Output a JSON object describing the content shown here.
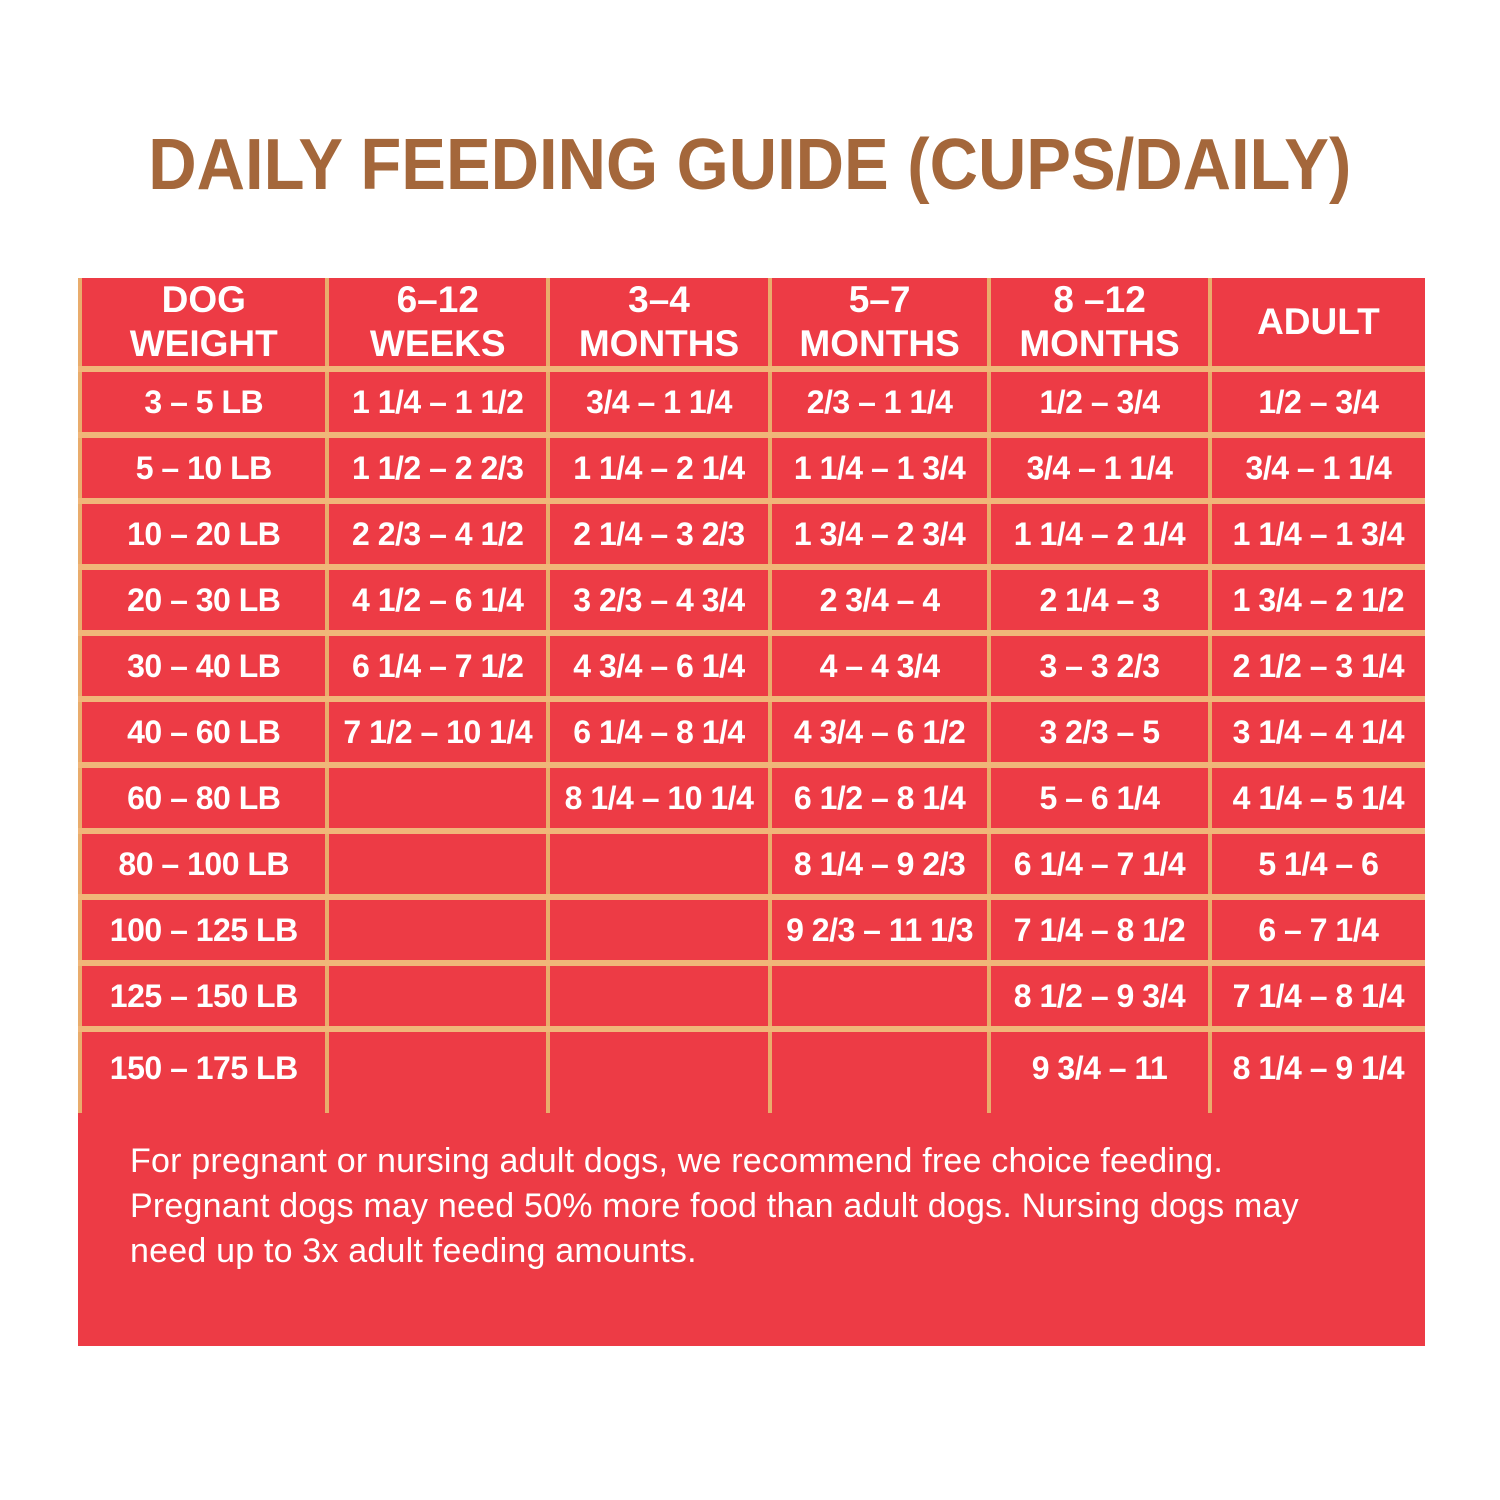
{
  "title": "DAILY FEEDING GUIDE (CUPS/DAILY)",
  "colors": {
    "panel_red": "#ED3B45",
    "grid_line_vertical": "#E9AC6C",
    "grid_line_horizontal": "#F0B679",
    "title_brown": "#A4673B",
    "text_white": "#FFFFFF"
  },
  "table": {
    "columns": [
      "DOG\nWEIGHT",
      "6–12\nWEEKS",
      "3–4\nMONTHS",
      "5–7\nMONTHS",
      "8 –12\nMONTHS",
      "ADULT"
    ],
    "rows": [
      {
        "weight": "3 – 5 LB",
        "cells": [
          "1 1/4 – 1 1/2",
          "3/4 – 1 1/4",
          "2/3 – 1 1/4",
          "1/2 – 3/4",
          "1/2 – 3/4"
        ]
      },
      {
        "weight": "5 – 10 LB",
        "cells": [
          "1 1/2 – 2 2/3",
          "1 1/4 – 2 1/4",
          "1 1/4 – 1 3/4",
          "3/4 – 1 1/4",
          "3/4 – 1 1/4"
        ]
      },
      {
        "weight": "10 – 20 LB",
        "cells": [
          "2 2/3 – 4 1/2",
          "2 1/4 – 3 2/3",
          "1 3/4 – 2 3/4",
          "1 1/4 – 2 1/4",
          "1 1/4 – 1 3/4"
        ]
      },
      {
        "weight": "20 – 30 LB",
        "cells": [
          "4 1/2 – 6 1/4",
          "3 2/3 – 4 3/4",
          "2 3/4 – 4",
          "2 1/4 – 3",
          "1 3/4 – 2 1/2"
        ]
      },
      {
        "weight": "30 – 40 LB",
        "cells": [
          "6 1/4 – 7 1/2",
          "4 3/4 – 6 1/4",
          "4 – 4 3/4",
          "3 – 3 2/3",
          "2 1/2 – 3 1/4"
        ]
      },
      {
        "weight": "40 – 60 LB",
        "cells": [
          "7 1/2 – 10 1/4",
          "6 1/4 – 8 1/4",
          "4 3/4 – 6 1/2",
          "3 2/3 – 5",
          "3 1/4 – 4 1/4"
        ]
      },
      {
        "weight": "60 – 80 LB",
        "cells": [
          "",
          "8 1/4 – 10 1/4",
          "6 1/2 – 8 1/4",
          "5 – 6 1/4",
          "4 1/4 – 5 1/4"
        ]
      },
      {
        "weight": "80 – 100 LB",
        "cells": [
          "",
          "",
          "8 1/4 – 9 2/3",
          "6 1/4 – 7 1/4",
          "5 1/4 – 6"
        ]
      },
      {
        "weight": "100 – 125 LB",
        "cells": [
          "",
          "",
          "9 2/3 – 11 1/3",
          "7 1/4 – 8 1/2",
          "6 – 7 1/4"
        ]
      },
      {
        "weight": "125 – 150 LB",
        "cells": [
          "",
          "",
          "",
          "8 1/2 – 9 3/4",
          "7 1/4 – 8 1/4"
        ]
      },
      {
        "weight": "150 – 175 LB",
        "cells": [
          "",
          "",
          "",
          "9 3/4 – 11",
          "8 1/4 – 9 1/4"
        ]
      }
    ]
  },
  "footnote": {
    "lines": [
      "For pregnant or nursing adult dogs, we recommend free choice feeding.",
      "Pregnant dogs may need 50% more food than adult dogs. Nursing dogs may",
      "need up to 3x adult feeding amounts."
    ]
  }
}
